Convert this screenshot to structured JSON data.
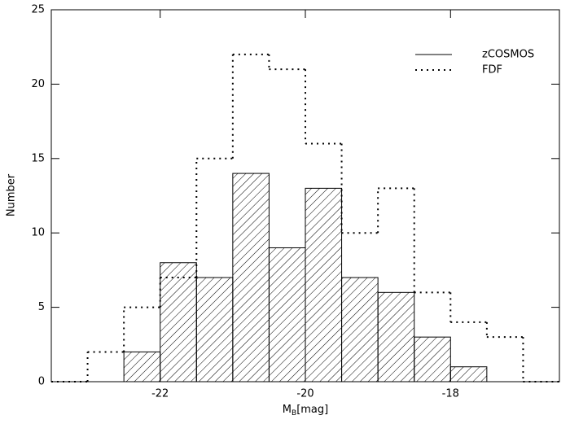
{
  "chart_data": {
    "type": "histogram",
    "xlabel": [
      "M",
      "B",
      "[mag]"
    ],
    "ylabel": "Number",
    "xlim": [
      -23.5,
      -16.5
    ],
    "xticks": [
      -22,
      -20,
      -18
    ],
    "ylim": [
      0,
      25
    ],
    "yticks": [
      0,
      5,
      10,
      15,
      20,
      25
    ],
    "series": [
      {
        "name": "zCOSMOS",
        "color": "#000000",
        "style": "hatched",
        "bins": [
          -22.5,
          -22,
          -21.5,
          -21,
          -20.5,
          -20,
          -19.5,
          -19,
          -18.5,
          -18,
          -17.5
        ],
        "values": [
          2,
          8,
          7,
          14,
          9,
          13,
          7,
          6,
          3,
          1
        ]
      },
      {
        "name": "FDF",
        "color": "#000000",
        "style": "dotted",
        "bins": [
          -23,
          -22.5,
          -22,
          -21.5,
          -21,
          -20.5,
          -20,
          -19.5,
          -19,
          -18.5,
          -18,
          -17.5,
          -17
        ],
        "values": [
          2,
          5,
          7,
          15,
          22,
          21,
          16,
          10,
          13,
          6,
          4,
          3
        ]
      }
    ]
  }
}
